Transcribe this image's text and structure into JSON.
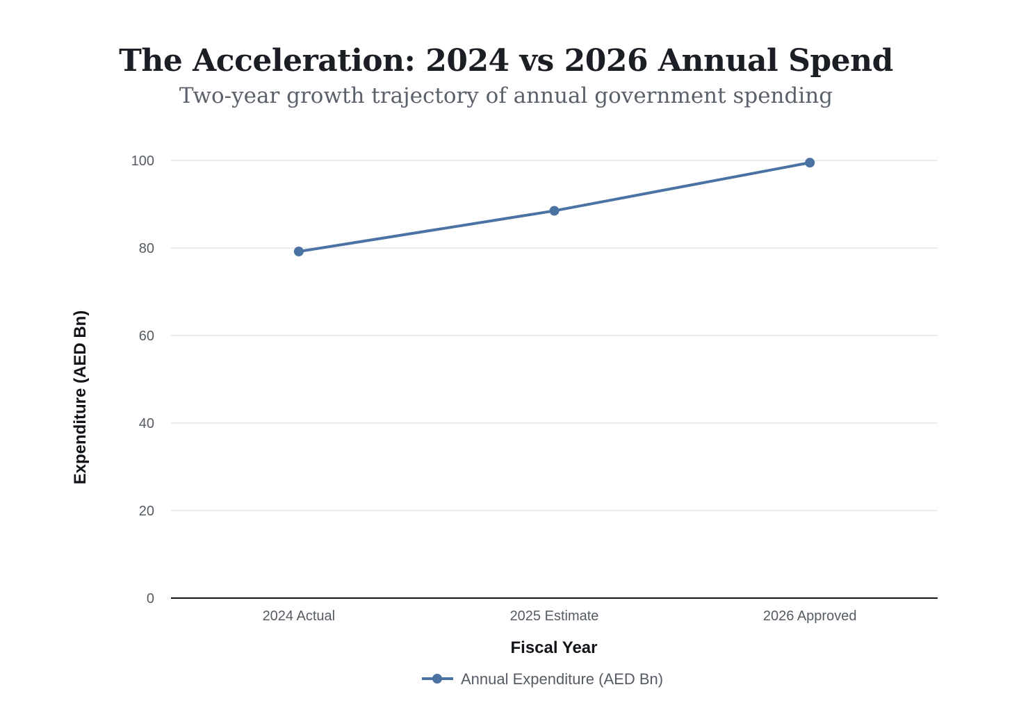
{
  "chart_data": {
    "type": "line",
    "title": "The Acceleration: 2024 vs 2026 Annual Spend",
    "subtitle": "Two-year growth trajectory of annual government spending",
    "xlabel": "Fiscal Year",
    "ylabel": "Expenditure (AED Bn)",
    "categories": [
      "2024 Actual",
      "2025 Estimate",
      "2026 Approved"
    ],
    "series": [
      {
        "name": "Annual Expenditure (AED Bn)",
        "values": [
          79.2,
          88.5,
          99.5
        ],
        "color": "#4a72a3"
      }
    ],
    "ylim": [
      0,
      110
    ],
    "yticks": [
      0,
      20,
      40,
      60,
      80,
      100
    ],
    "grid": true,
    "legend_position": "bottom-center"
  }
}
